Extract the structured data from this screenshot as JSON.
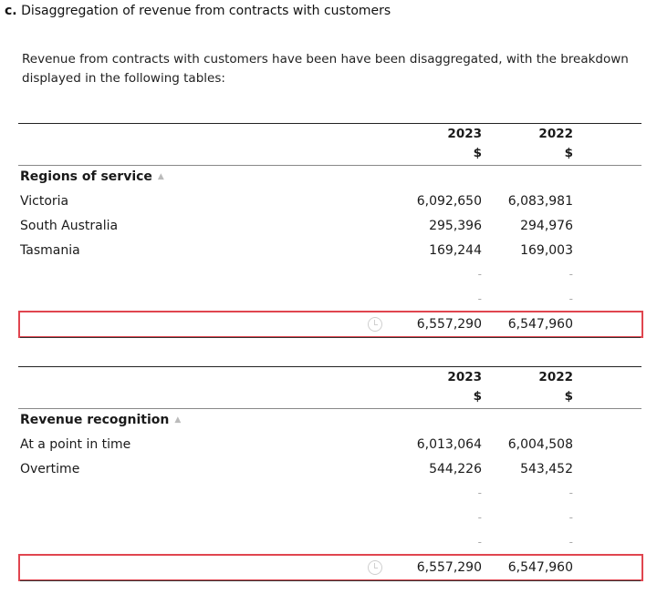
{
  "heading": {
    "letter": "c.",
    "text": "Disaggregation of revenue from contracts with customers"
  },
  "intro": "Revenue from contracts with customers have been have been disaggregated, with the breakdown displayed in the following tables:",
  "table1": {
    "col_2023": "2023",
    "col_2022": "2022",
    "currency_2023": "$",
    "currency_2022": "$",
    "section": "Regions of service",
    "rows": [
      {
        "label": "Victoria",
        "v2023": "6,092,650",
        "v2022": "6,083,981"
      },
      {
        "label": "South Australia",
        "v2023": "295,396",
        "v2022": "294,976"
      },
      {
        "label": "Tasmania",
        "v2023": "169,244",
        "v2022": "169,003"
      }
    ],
    "blank_value": "-",
    "total_2023": "6,557,290",
    "total_2022": "6,547,960"
  },
  "table2": {
    "col_2023": "2023",
    "col_2022": "2022",
    "currency_2023": "$",
    "currency_2022": "$",
    "section": "Revenue recognition",
    "rows": [
      {
        "label": "At a point in time",
        "v2023": "6,013,064",
        "v2022": "6,004,508"
      },
      {
        "label": "Overtime",
        "v2023": "544,226",
        "v2022": "543,452"
      }
    ],
    "blank_value": "-",
    "total_2023": "6,557,290",
    "total_2022": "6,547,960"
  },
  "colors": {
    "highlight": "#e0454f"
  },
  "icons": {
    "caret": "chevron-up-icon",
    "history": "history-icon"
  }
}
